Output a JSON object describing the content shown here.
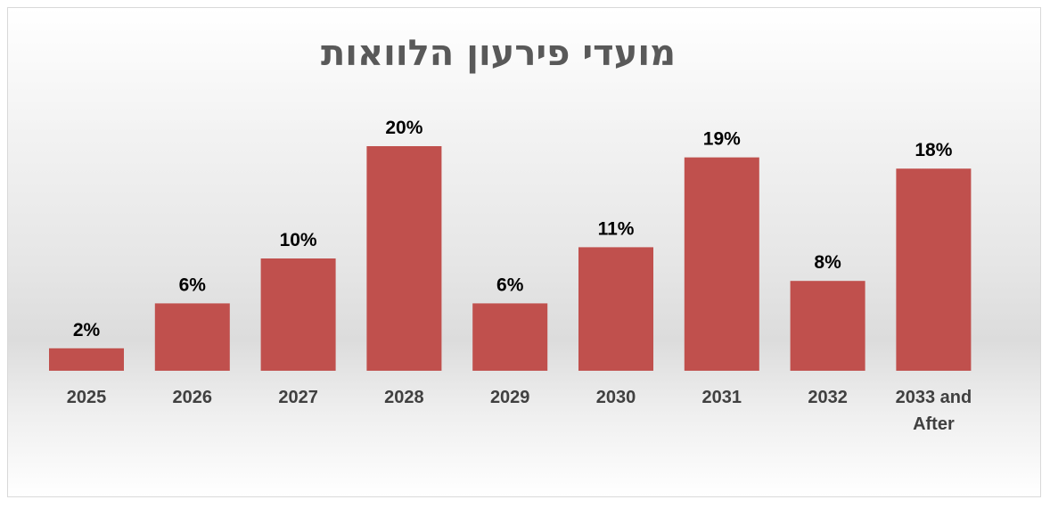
{
  "chart_data": {
    "type": "bar",
    "title": "מועדי פירעון הלוואות",
    "categories": [
      "2025",
      "2026",
      "2027",
      "2028",
      "2029",
      "2030",
      "2031",
      "2032",
      "2033 and After"
    ],
    "values": [
      2,
      6,
      10,
      20,
      6,
      11,
      19,
      8,
      18
    ],
    "data_labels": [
      "2%",
      "6%",
      "10%",
      "20%",
      "6%",
      "11%",
      "19%",
      "8%",
      "18%"
    ],
    "value_unit": "%",
    "xlabel": "",
    "ylabel": "",
    "ylim": [
      0,
      20
    ],
    "grid": false,
    "legend": "none",
    "colors": {
      "bar": "#c0504d",
      "title": "#595959",
      "tick_label": "#404040",
      "data_label": "#000000"
    }
  }
}
